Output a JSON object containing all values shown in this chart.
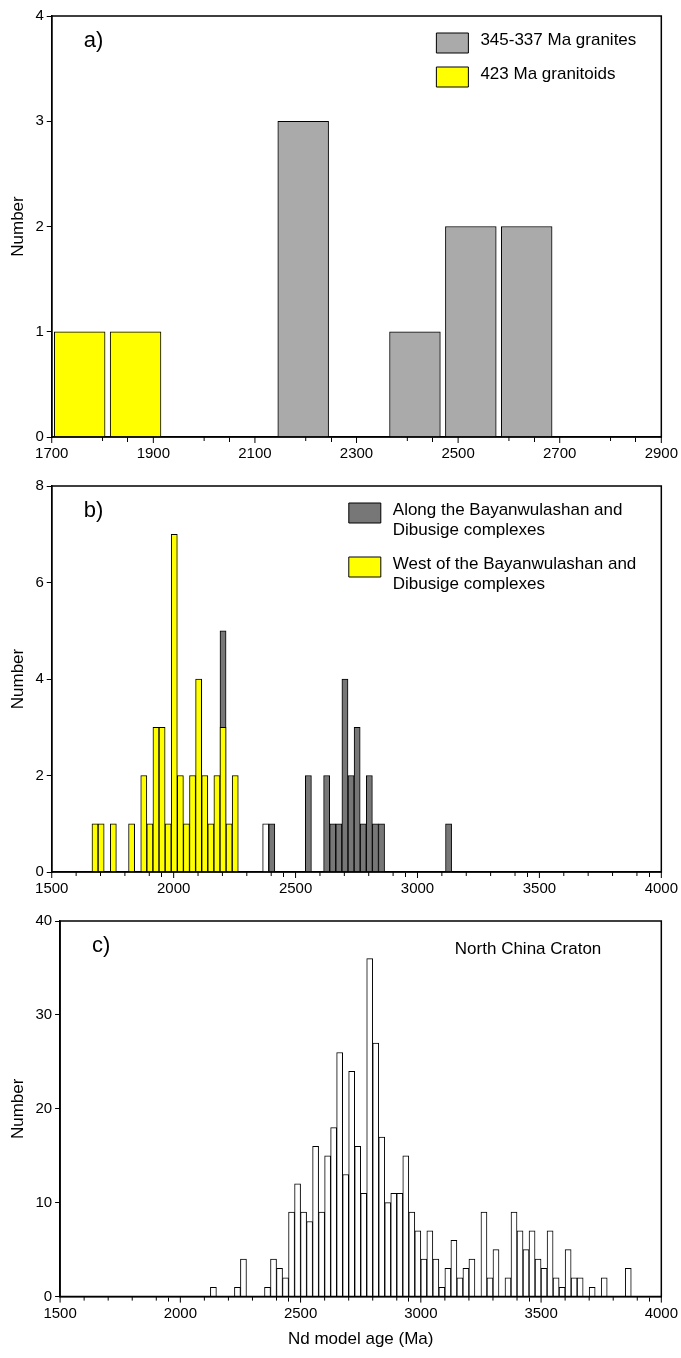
{
  "chart_data": [
    {
      "type": "histogram",
      "title": "a)",
      "ylabel": "Number",
      "legend": "top right",
      "bins": [
        1700,
        1810,
        1920,
        2030,
        2140,
        2250,
        2360,
        2470,
        2580,
        2690
      ],
      "series": [
        {
          "name": "345-337 Ma granites",
          "color": "#aaaaaa",
          "values": [
            0,
            0,
            0,
            0,
            3,
            0,
            1,
            2,
            2
          ]
        },
        {
          "name": "423 Ma granitoids",
          "color": "#ffff00",
          "values": [
            1,
            1,
            0,
            0,
            0,
            0,
            0,
            0,
            0
          ]
        }
      ],
      "xlim": [
        1700,
        2900
      ],
      "ylim": [
        0,
        4
      ],
      "xticks": [
        1700,
        {
          "value": 1800,
          "label": null
        },
        1900,
        {
          "value": 2000,
          "label": null
        },
        2100,
        {
          "value": 2200,
          "label": null
        },
        2300,
        {
          "value": 2400,
          "label": null
        },
        2500,
        {
          "value": 2600,
          "label": null
        },
        2700,
        {
          "value": 2800,
          "label": null
        },
        2900
      ],
      "yticks": [
        0,
        1,
        2,
        3,
        4
      ]
    },
    {
      "type": "histogram",
      "title": "b)",
      "ylabel": "Number",
      "legend": "top right",
      "bins": [
        1665,
        1690,
        1715,
        1740,
        1765,
        1790,
        1815,
        1840,
        1865,
        1890,
        1915,
        1940,
        1965,
        1990,
        2015,
        2040,
        2065,
        2090,
        2115,
        2140,
        2165,
        2190,
        2215,
        2240,
        2265,
        2290,
        2315,
        2340,
        2365,
        2390,
        2415,
        2440,
        2465,
        2490,
        2515,
        2540,
        2565,
        2590,
        2615,
        2640,
        2665,
        2690,
        2715,
        2740,
        2765,
        2790,
        2815,
        2840,
        2865,
        2890,
        2915,
        2940,
        2965,
        2990,
        3015,
        3040,
        3065,
        3090,
        3115,
        3140
      ],
      "series": [
        {
          "name": "Along the Bayanwulashan and Dibusige complexes",
          "color": "#777777",
          "values": [
            0,
            0,
            0,
            0,
            0,
            0,
            0,
            0,
            0,
            0,
            0,
            0,
            0,
            0,
            0,
            0,
            0,
            0,
            0,
            0,
            0,
            5,
            0,
            0,
            0,
            0,
            0,
            0,
            0,
            1,
            0,
            0,
            0,
            0,
            0,
            2,
            0,
            0,
            2,
            1,
            1,
            4,
            2,
            3,
            1,
            2,
            1,
            1,
            0,
            0,
            0,
            0,
            0,
            0,
            0,
            0,
            0,
            0,
            1
          ]
        },
        {
          "name": "West of the Bayanwulashan and Dibusige complexes",
          "color": "#ffff00",
          "values": [
            1,
            1,
            0,
            1,
            0,
            0,
            1,
            0,
            2,
            1,
            3,
            3,
            1,
            7,
            2,
            1,
            2,
            4,
            2,
            1,
            2,
            3,
            1,
            2,
            0,
            0,
            0,
            0,
            0,
            0,
            0,
            0,
            0,
            0,
            0,
            0,
            0,
            0,
            0,
            0,
            0,
            0,
            0,
            0,
            0,
            0,
            0,
            0,
            0,
            0,
            0,
            0,
            0,
            0,
            0,
            0,
            0,
            0,
            0
          ]
        },
        {
          "color": "#ffffff",
          "values": [
            0,
            0,
            0,
            0,
            0,
            0,
            0,
            0,
            0,
            0,
            0,
            0,
            0,
            0,
            0,
            0,
            0,
            0,
            0,
            0,
            0,
            0,
            0,
            0,
            0,
            0,
            0,
            0,
            1,
            0,
            0,
            0,
            0,
            0,
            0,
            0,
            0,
            0,
            0,
            0,
            0,
            0,
            0,
            0,
            0,
            0,
            0,
            0,
            0,
            0,
            0,
            0,
            0,
            0,
            0,
            0,
            0,
            0,
            0
          ]
        }
      ],
      "xlim": [
        1500,
        4000
      ],
      "ylim": [
        0,
        8
      ],
      "xticks": [
        1500,
        {
          "value": 1600,
          "label": null
        },
        {
          "value": 1700,
          "label": null
        },
        {
          "value": 1800,
          "label": null
        },
        {
          "value": 1900,
          "label": null
        },
        2000,
        {
          "value": 2100,
          "label": null
        },
        {
          "value": 2200,
          "label": null
        },
        {
          "value": 2300,
          "label": null
        },
        {
          "value": 2400,
          "label": null
        },
        2500,
        {
          "value": 2600,
          "label": null
        },
        {
          "value": 2700,
          "label": null
        },
        {
          "value": 2800,
          "label": null
        },
        {
          "value": 2900,
          "label": null
        },
        3000,
        {
          "value": 3100,
          "label": null
        },
        {
          "value": 3200,
          "label": null
        },
        {
          "value": 3300,
          "label": null
        },
        {
          "value": 3400,
          "label": null
        },
        3500,
        {
          "value": 3600,
          "label": null
        },
        {
          "value": 3700,
          "label": null
        },
        {
          "value": 3800,
          "label": null
        },
        {
          "value": 3900,
          "label": null
        },
        4000
      ],
      "yticks": [
        0,
        2,
        4,
        6,
        8
      ]
    },
    {
      "type": "histogram",
      "title": "c)",
      "xlabel": "Nd model age (Ma)",
      "ylabel": "Number",
      "annotations": [
        "North China Craton"
      ],
      "bins": [
        2125,
        2150,
        2175,
        2200,
        2225,
        2250,
        2275,
        2300,
        2325,
        2350,
        2375,
        2400,
        2425,
        2450,
        2475,
        2500,
        2525,
        2550,
        2575,
        2600,
        2625,
        2650,
        2675,
        2700,
        2725,
        2750,
        2775,
        2800,
        2825,
        2850,
        2875,
        2900,
        2925,
        2950,
        2975,
        3000,
        3025,
        3050,
        3075,
        3100,
        3125,
        3150,
        3175,
        3200,
        3225,
        3250,
        3275,
        3300,
        3325,
        3350,
        3375,
        3400,
        3425,
        3450,
        3475,
        3500,
        3525,
        3550,
        3575,
        3600,
        3625,
        3650,
        3675,
        3700,
        3725,
        3750,
        3775,
        3800,
        3825,
        3850,
        3875
      ],
      "color": "#ffffff",
      "values": [
        1,
        0,
        0,
        0,
        1,
        4,
        0,
        0,
        0,
        1,
        4,
        3,
        2,
        9,
        12,
        9,
        8,
        16,
        9,
        15,
        18,
        26,
        13,
        24,
        16,
        11,
        36,
        27,
        17,
        10,
        11,
        11,
        15,
        9,
        7,
        4,
        7,
        4,
        1,
        3,
        6,
        2,
        3,
        4,
        0,
        9,
        2,
        5,
        0,
        2,
        9,
        7,
        5,
        7,
        4,
        3,
        7,
        2,
        1,
        5,
        2,
        2,
        0,
        1,
        0,
        2,
        0,
        0,
        0,
        3
      ],
      "xlim": [
        1500,
        4000
      ],
      "ylim": [
        0,
        40
      ],
      "xticks": [
        1500,
        {
          "value": 1600,
          "label": null
        },
        {
          "value": 1700,
          "label": null
        },
        {
          "value": 1800,
          "label": null
        },
        {
          "value": 1900,
          "label": null
        },
        2000,
        {
          "value": 2100,
          "label": null
        },
        {
          "value": 2200,
          "label": null
        },
        {
          "value": 2300,
          "label": null
        },
        {
          "value": 2400,
          "label": null
        },
        2500,
        {
          "value": 2600,
          "label": null
        },
        {
          "value": 2700,
          "label": null
        },
        {
          "value": 2800,
          "label": null
        },
        {
          "value": 2900,
          "label": null
        },
        3000,
        {
          "value": 3100,
          "label": null
        },
        {
          "value": 3200,
          "label": null
        },
        {
          "value": 3300,
          "label": null
        },
        {
          "value": 3400,
          "label": null
        },
        3500,
        {
          "value": 3600,
          "label": null
        },
        {
          "value": 3700,
          "label": null
        },
        {
          "value": 3800,
          "label": null
        },
        {
          "value": 3900,
          "label": null
        },
        4000
      ],
      "yticks": [
        0,
        10,
        20,
        30,
        40
      ]
    }
  ]
}
